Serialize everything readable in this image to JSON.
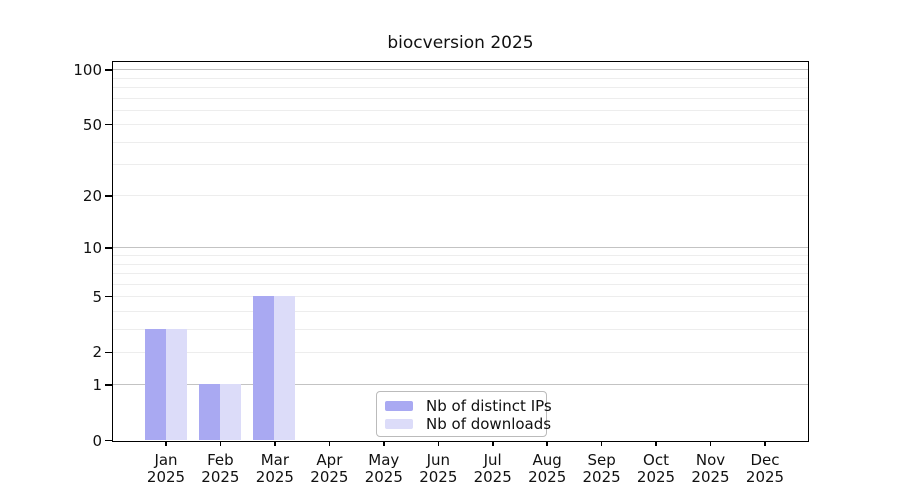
{
  "chart_data": {
    "type": "bar",
    "title": "biocversion 2025",
    "categories": [
      "Jan",
      "Feb",
      "Mar",
      "Apr",
      "May",
      "Jun",
      "Jul",
      "Aug",
      "Sep",
      "Oct",
      "Nov",
      "Dec"
    ],
    "year": "2025",
    "series": [
      {
        "name": "Nb of distinct IPs",
        "color": "#a9a9f2",
        "values": [
          3,
          1,
          5,
          0,
          0,
          0,
          0,
          0,
          0,
          0,
          0,
          0
        ]
      },
      {
        "name": "Nb of downloads",
        "color": "#dcdcf9",
        "values": [
          3,
          1,
          5,
          0,
          0,
          0,
          0,
          0,
          0,
          0,
          0,
          0
        ]
      }
    ],
    "y_ticks": [
      0,
      1,
      2,
      5,
      10,
      20,
      50,
      100
    ],
    "y_scale": "log10(1+x)",
    "ylim": [
      0,
      110
    ],
    "grid": true,
    "legend_position": "inside-bottom-center",
    "colors": {
      "grid_major": "#c3c3c3",
      "grid_minor": "#ededed",
      "axis": "#000000",
      "text": "#111111",
      "background": "#ffffff"
    }
  }
}
